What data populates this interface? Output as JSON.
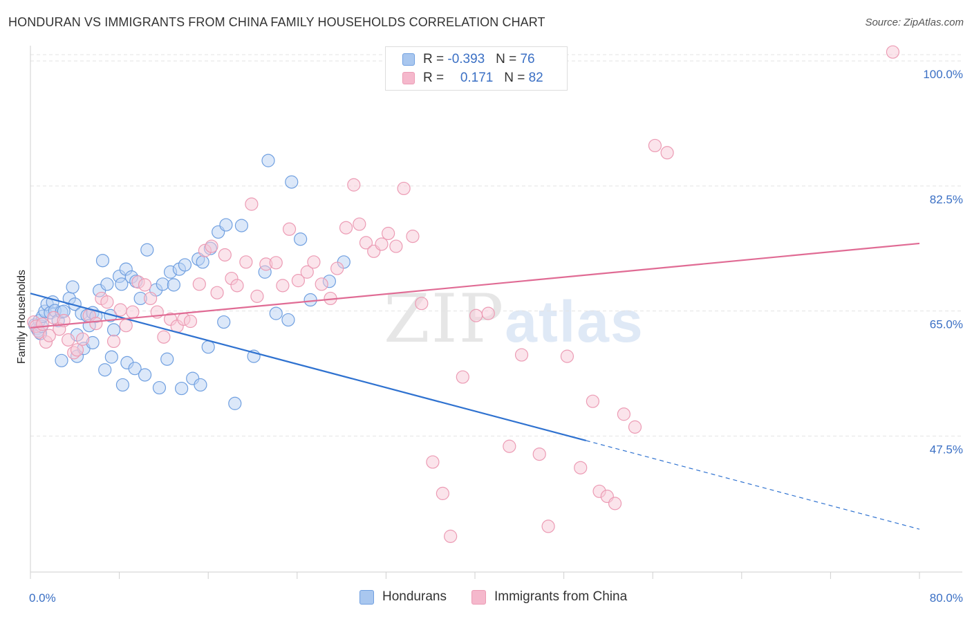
{
  "title": "HONDURAN VS IMMIGRANTS FROM CHINA FAMILY HOUSEHOLDS CORRELATION CHART",
  "source": "Source: ZipAtlas.com",
  "watermark": {
    "zip": "ZIP",
    "atlas": "atlas"
  },
  "legend": [
    {
      "r_label": "R = ",
      "r_value": "-0.393",
      "n_label": "N = ",
      "n_value": "76",
      "color": "#a9c7ef"
    },
    {
      "r_label": "R = ",
      "r_value": "0.171",
      "n_label": "N = ",
      "n_value": "82",
      "color": "#f5b8cc"
    }
  ],
  "chart_data": {
    "type": "scatter",
    "title": "HONDURAN VS IMMIGRANTS FROM CHINA FAMILY HOUSEHOLDS CORRELATION CHART",
    "xlabel": "",
    "ylabel": "Family Households",
    "xlim": [
      0,
      80
    ],
    "ylim": [
      30.2,
      103.5
    ],
    "x_tick_labels": [
      "0.0%",
      "80.0%"
    ],
    "y_ticks": [
      47.5,
      65.0,
      82.5,
      100.0
    ],
    "y_tick_labels": [
      "47.5%",
      "65.0%",
      "82.5%",
      "100.0%"
    ],
    "grid": true,
    "legend_position": "top-center",
    "series": [
      {
        "name": "Hondurans",
        "color": "#6f9fe0",
        "fill": "#b9d1f3",
        "trend": {
          "x0": 0,
          "y0": 69.2,
          "x1": 50,
          "y1": 48.6,
          "dashed_to_x": 80,
          "dashed_to_y": 36.2,
          "color": "#2f72d0"
        },
        "points": [
          [
            0.4,
            64.8
          ],
          [
            0.6,
            64.3
          ],
          [
            0.7,
            64.0
          ],
          [
            0.8,
            65.4
          ],
          [
            0.9,
            63.6
          ],
          [
            1.0,
            64.6
          ],
          [
            1.1,
            66.0
          ],
          [
            1.3,
            66.7
          ],
          [
            1.5,
            67.7
          ],
          [
            1.8,
            66.5
          ],
          [
            2.0,
            68.0
          ],
          [
            2.2,
            66.8
          ],
          [
            2.5,
            65.4
          ],
          [
            2.8,
            66.6
          ],
          [
            3.0,
            66.7
          ],
          [
            3.5,
            68.5
          ],
          [
            3.8,
            70.1
          ],
          [
            4.0,
            67.7
          ],
          [
            4.2,
            63.4
          ],
          [
            4.6,
            66.4
          ],
          [
            5.1,
            66.1
          ],
          [
            5.3,
            64.7
          ],
          [
            5.6,
            66.5
          ],
          [
            5.9,
            66.0
          ],
          [
            6.2,
            69.6
          ],
          [
            6.5,
            73.8
          ],
          [
            6.9,
            70.5
          ],
          [
            7.2,
            66.1
          ],
          [
            7.5,
            64.1
          ],
          [
            8.0,
            71.6
          ],
          [
            8.2,
            70.5
          ],
          [
            8.6,
            72.6
          ],
          [
            9.1,
            71.5
          ],
          [
            9.5,
            70.9
          ],
          [
            9.9,
            68.5
          ],
          [
            10.5,
            75.3
          ],
          [
            11.3,
            69.7
          ],
          [
            11.9,
            70.5
          ],
          [
            12.6,
            72.2
          ],
          [
            12.9,
            70.4
          ],
          [
            13.4,
            72.6
          ],
          [
            13.9,
            73.2
          ],
          [
            15.1,
            74.0
          ],
          [
            15.5,
            73.6
          ],
          [
            16.2,
            75.5
          ],
          [
            16.9,
            77.8
          ],
          [
            17.6,
            78.8
          ],
          [
            19.0,
            78.7
          ],
          [
            8.7,
            59.5
          ],
          [
            9.4,
            58.7
          ],
          [
            2.8,
            59.8
          ],
          [
            4.2,
            60.4
          ],
          [
            4.8,
            61.5
          ],
          [
            5.6,
            62.3
          ],
          [
            6.7,
            58.5
          ],
          [
            7.3,
            60.3
          ],
          [
            8.3,
            56.4
          ],
          [
            10.3,
            57.8
          ],
          [
            11.6,
            56.0
          ],
          [
            12.3,
            60.0
          ],
          [
            13.6,
            55.9
          ],
          [
            14.6,
            57.3
          ],
          [
            15.3,
            56.4
          ],
          [
            16.0,
            61.7
          ],
          [
            17.4,
            65.2
          ],
          [
            18.4,
            53.8
          ],
          [
            20.1,
            60.4
          ],
          [
            23.2,
            65.5
          ],
          [
            21.1,
            72.2
          ],
          [
            22.1,
            66.4
          ],
          [
            24.3,
            76.8
          ],
          [
            25.2,
            68.3
          ],
          [
            26.9,
            70.9
          ],
          [
            28.2,
            73.6
          ],
          [
            21.4,
            87.8
          ],
          [
            23.5,
            84.8
          ]
        ]
      },
      {
        "name": "Immigrants from China",
        "color": "#ec9bb4",
        "fill": "#f7c9d7",
        "trend": {
          "x0": 0,
          "y0": 64.4,
          "x1": 80,
          "y1": 76.2,
          "color": "#e06b94"
        },
        "points": [
          [
            0.3,
            65.2
          ],
          [
            0.5,
            64.6
          ],
          [
            0.8,
            63.8
          ],
          [
            1.1,
            64.9
          ],
          [
            1.4,
            62.4
          ],
          [
            1.7,
            63.3
          ],
          [
            2.1,
            65.8
          ],
          [
            2.6,
            64.2
          ],
          [
            3.0,
            65.4
          ],
          [
            3.4,
            62.7
          ],
          [
            3.9,
            60.9
          ],
          [
            4.2,
            61.3
          ],
          [
            4.7,
            62.8
          ],
          [
            5.3,
            66.1
          ],
          [
            5.9,
            65.0
          ],
          [
            6.4,
            68.5
          ],
          [
            6.9,
            68.0
          ],
          [
            7.5,
            62.5
          ],
          [
            8.1,
            66.9
          ],
          [
            8.6,
            64.7
          ],
          [
            9.2,
            66.6
          ],
          [
            9.7,
            70.8
          ],
          [
            10.3,
            70.4
          ],
          [
            10.8,
            68.5
          ],
          [
            11.4,
            66.6
          ],
          [
            12.0,
            63.1
          ],
          [
            12.6,
            65.6
          ],
          [
            13.2,
            64.6
          ],
          [
            13.8,
            65.6
          ],
          [
            14.4,
            65.3
          ],
          [
            15.2,
            70.5
          ],
          [
            15.7,
            75.2
          ],
          [
            16.3,
            75.8
          ],
          [
            16.8,
            69.3
          ],
          [
            17.5,
            74.6
          ],
          [
            18.1,
            71.3
          ],
          [
            18.6,
            70.3
          ],
          [
            19.4,
            73.6
          ],
          [
            19.9,
            81.7
          ],
          [
            20.4,
            68.8
          ],
          [
            21.2,
            73.3
          ],
          [
            22.1,
            73.5
          ],
          [
            22.7,
            70.3
          ],
          [
            23.3,
            78.2
          ],
          [
            24.1,
            71.0
          ],
          [
            24.9,
            72.2
          ],
          [
            25.5,
            73.6
          ],
          [
            26.2,
            70.5
          ],
          [
            27.0,
            68.5
          ],
          [
            27.6,
            72.7
          ],
          [
            28.4,
            78.4
          ],
          [
            29.1,
            84.4
          ],
          [
            29.6,
            78.9
          ],
          [
            30.2,
            76.3
          ],
          [
            30.9,
            75.1
          ],
          [
            31.6,
            76.1
          ],
          [
            32.2,
            77.6
          ],
          [
            32.9,
            75.8
          ],
          [
            33.6,
            83.9
          ],
          [
            34.4,
            77.2
          ],
          [
            35.2,
            67.8
          ],
          [
            36.2,
            45.6
          ],
          [
            37.1,
            41.2
          ],
          [
            37.8,
            35.2
          ],
          [
            38.9,
            57.5
          ],
          [
            40.1,
            66.1
          ],
          [
            41.2,
            66.4
          ],
          [
            43.1,
            47.8
          ],
          [
            44.2,
            60.6
          ],
          [
            45.8,
            46.7
          ],
          [
            46.6,
            36.6
          ],
          [
            48.3,
            60.4
          ],
          [
            49.5,
            44.8
          ],
          [
            50.6,
            54.1
          ],
          [
            51.2,
            41.5
          ],
          [
            51.9,
            40.8
          ],
          [
            52.6,
            39.8
          ],
          [
            53.4,
            52.3
          ],
          [
            54.4,
            50.5
          ],
          [
            56.2,
            89.9
          ],
          [
            57.3,
            88.9
          ],
          [
            77.6,
            103.0
          ]
        ]
      }
    ]
  }
}
